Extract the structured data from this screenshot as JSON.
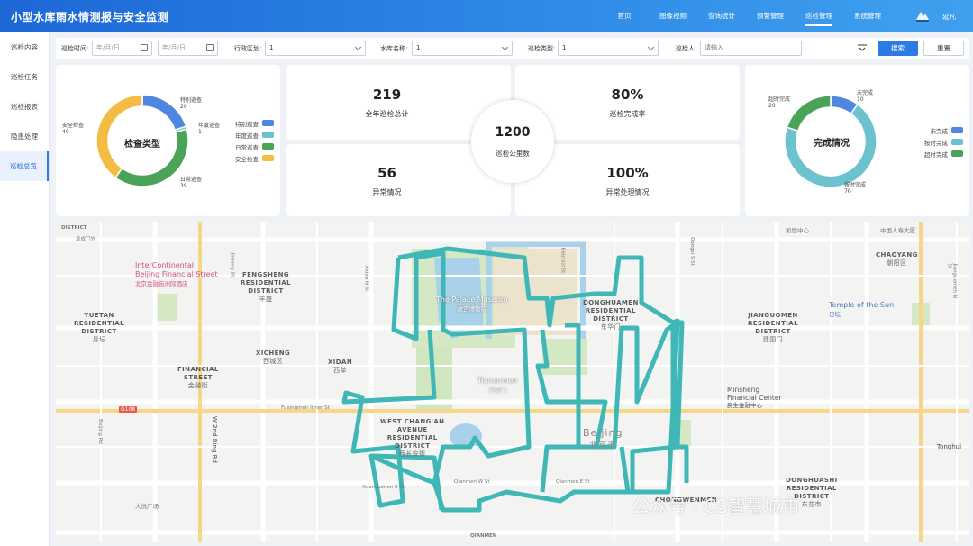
{
  "header": {
    "title": "小型水库雨水情测报与安全监测",
    "nav": [
      "首页",
      "图像视频",
      "查询统计",
      "预警管理",
      "巡检管理",
      "系统管理"
    ],
    "active_nav": 4,
    "user": "延凡"
  },
  "sidebar": {
    "items": [
      "巡检内容",
      "巡检任务",
      "巡检报表",
      "隐患处理",
      "巡检总览"
    ],
    "active": 4
  },
  "filter": {
    "time_label": "巡检时间:",
    "date_start_placeholder": "年/月/日",
    "date_end_placeholder": "年/月/日",
    "district_label": "行政区划:",
    "district_value": "1",
    "reservoir_label": "水库名称:",
    "reservoir_value": "1",
    "type_label": "巡检类型:",
    "type_value": "1",
    "inspector_label": "巡检人:",
    "inspector_placeholder": "请输入",
    "search_label": "搜索",
    "reset_label": "重置"
  },
  "type_chart": {
    "center_label": "检查类型",
    "slices": [
      {
        "name": "特别巡查",
        "value": 20,
        "color": "#4f86e0"
      },
      {
        "name": "年度巡查",
        "value": 1,
        "color": "#6cc3cf"
      },
      {
        "name": "日常巡查",
        "value": 39,
        "color": "#4aa357"
      },
      {
        "name": "安全检查",
        "value": 40,
        "color": "#f2bd42"
      }
    ],
    "callouts": [
      {
        "name": "特别巡查",
        "value": "20"
      },
      {
        "name": "年度巡查",
        "value": "1"
      },
      {
        "name": "日常巡查",
        "value": "39"
      },
      {
        "name": "安全检查",
        "value": "40"
      }
    ]
  },
  "stats": {
    "annual_total": {
      "value": "219",
      "label": "全年巡检总计"
    },
    "completion_rate": {
      "value": "80%",
      "label": "巡检完成率"
    },
    "abnormal": {
      "value": "56",
      "label": "异常情况"
    },
    "abnormal_handled": {
      "value": "100%",
      "label": "异常处理情况"
    },
    "distance": {
      "value": "1200",
      "label": "巡检公里数"
    }
  },
  "status_chart": {
    "center_label": "完成情况",
    "slices": [
      {
        "name": "未完成",
        "value": 10,
        "color": "#4f86e0"
      },
      {
        "name": "按时完成",
        "value": 70,
        "color": "#6cc3cf"
      },
      {
        "name": "超时完成",
        "value": 20,
        "color": "#4aa357"
      }
    ],
    "callouts": [
      {
        "name": "未完成",
        "value": "10"
      },
      {
        "name": "按时完成",
        "value": "70"
      },
      {
        "name": "超时完成",
        "value": "20"
      }
    ]
  },
  "map": {
    "districts": [
      {
        "text": "FENGSHENG\nRESIDENTIAL\nDISTRICT",
        "sub": "丰盛"
      },
      {
        "text": "YUETAN\nRESIDENTIAL\nDISTRICT",
        "sub": "月坛"
      },
      {
        "text": "XICHENG",
        "sub": "西城区"
      },
      {
        "text": "FINANCIAL\nSTREET",
        "sub": "金融街"
      },
      {
        "text": "XIDAN",
        "sub": "西单"
      },
      {
        "text": "WEST CHANG'AN\nAVENUE\nRESIDENTIAL\nDISTRICT",
        "sub": "西长安街"
      },
      {
        "text": "DONGHUAMEN\nRESIDENTIAL\nDISTRICT",
        "sub": "东华门"
      },
      {
        "text": "CHAOYANG",
        "sub": "朝阳区"
      },
      {
        "text": "JIANGUOMEN\nRESIDENTIAL\nDISTRICT",
        "sub": "建国门"
      },
      {
        "text": "DONGHUASHI\nRESIDENTIAL\nDISTRICT",
        "sub": "东花市"
      },
      {
        "text": "CHONGWENMEN",
        "sub": ""
      }
    ],
    "pois": [
      {
        "text": "InterContinental\nBeijing Financial Street",
        "sub": "北京金融街洲际酒店"
      },
      {
        "text": "The Palace Museum",
        "sub": "故宫博物院"
      },
      {
        "text": "Tiananmen",
        "sub": "天安门"
      },
      {
        "text": "Temple of the Sun",
        "sub": "日坛"
      },
      {
        "text": "Minsheng\nFinancial Center",
        "sub": "民生金融中心"
      },
      {
        "text": "Beijing",
        "sub": "北京市"
      }
    ],
    "streets": [
      "DISTRICT",
      "阜成门外",
      "Fuxingmen Inner St",
      "Qianmen W St",
      "Qianmen E St",
      "Xuanwumen E St",
      "W 2nd Ring Rd",
      "Jinrong St",
      "Xidan N St",
      "Beichizi St",
      "Dongsi S St",
      "Jianguomen N St",
      "大悦广场",
      "凯恒中心",
      "中国人寿大厦",
      "Tonghui",
      "G108",
      "QIANMEN",
      "Beijing Rd"
    ],
    "watermark": "公众号 · CS智慧城市",
    "route_color": "#3fb7b7"
  }
}
